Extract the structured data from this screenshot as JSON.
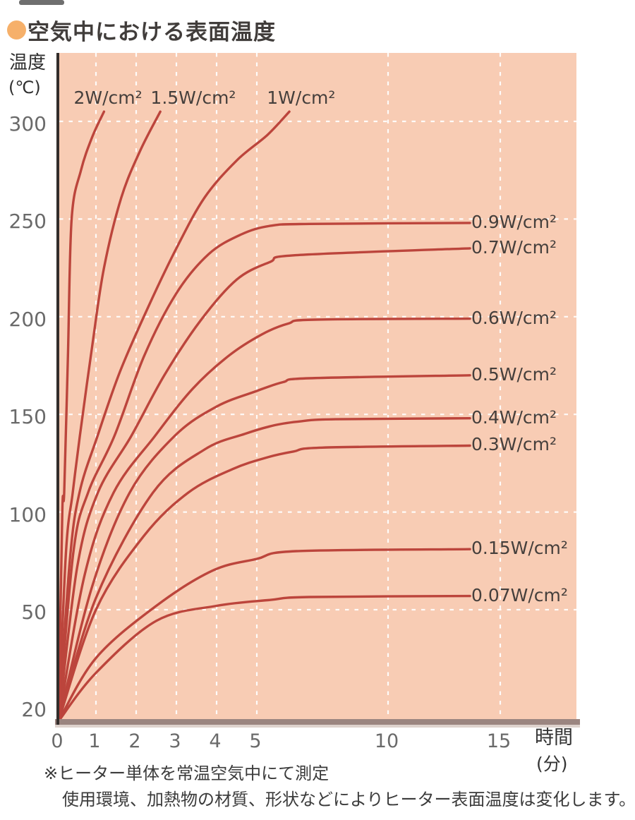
{
  "title": "空気中における表面温度",
  "y_axis": {
    "name_line1": "温度",
    "name_line2": "(℃)"
  },
  "x_axis": {
    "name_line1": "時間",
    "name_line2": "(分)"
  },
  "footnotes": [
    "※ヒーター単体を常温空気中にて測定",
    "使用環境、加熱物の材質、形状などによりヒーター表面温度は変化します。"
  ],
  "colors": {
    "plot_bg": "#f8ccb4",
    "curve": "#bc453c",
    "grid": "#ffffff",
    "bullet": "#f6b06a",
    "axis_line": "#332e2c",
    "baseline_bar": "#9b8580",
    "baseline_bar_shadow": "#cdbab2"
  },
  "chart_data": {
    "type": "line",
    "title": "空気中における表面温度",
    "xlabel": "時間(分)",
    "ylabel": "温度(℃)",
    "xlim": [
      0,
      15
    ],
    "ylim": [
      20,
      310
    ],
    "x_ticks": [
      0,
      1,
      2,
      3,
      4,
      5,
      10,
      15
    ],
    "y_ticks": [
      300,
      250,
      200,
      150,
      100,
      50,
      20
    ],
    "x_scale_note": "non-linear: 0-5 min expanded, 5-15 min compressed",
    "grid": "white dashed",
    "legend_position": "labels at curve ends",
    "series": [
      {
        "label": "2W/cm²",
        "side": "top",
        "label_t": 1.3,
        "label_T": 312,
        "points": [
          [
            0,
            20
          ],
          [
            0.1,
            100
          ],
          [
            0.15,
            110
          ],
          [
            0.25,
            180
          ],
          [
            0.35,
            250
          ],
          [
            0.6,
            275
          ],
          [
            0.9,
            292
          ],
          [
            1.2,
            305
          ]
        ]
      },
      {
        "label": "1.5W/cm²",
        "side": "top",
        "label_t": 3.42,
        "label_T": 312,
        "points": [
          [
            0,
            20
          ],
          [
            0.2,
            80
          ],
          [
            0.38,
            110
          ],
          [
            0.57,
            139
          ],
          [
            0.9,
            185
          ],
          [
            1.2,
            225
          ],
          [
            1.63,
            261
          ],
          [
            2.1,
            285
          ],
          [
            2.6,
            305
          ]
        ]
      },
      {
        "label": "1W/cm²",
        "side": "top",
        "label_t": 6.69,
        "label_T": 312,
        "points": [
          [
            0,
            20
          ],
          [
            0.3,
            75
          ],
          [
            0.56,
            110
          ],
          [
            1.04,
            139
          ],
          [
            1.6,
            172
          ],
          [
            2.3,
            205
          ],
          [
            3,
            235
          ],
          [
            3.7,
            261
          ],
          [
            4.5,
            280
          ],
          [
            5.4,
            293
          ],
          [
            6.24,
            305
          ]
        ]
      },
      {
        "label": "0.9W/cm²",
        "side": "right",
        "max_temp": 248,
        "points": [
          [
            0,
            20
          ],
          [
            0.4,
            80
          ],
          [
            0.79,
            110
          ],
          [
            1.46,
            139
          ],
          [
            2.2,
            180
          ],
          [
            3,
            212
          ],
          [
            3.8,
            232
          ],
          [
            4.6,
            242
          ],
          [
            5.5,
            246.5
          ],
          [
            7,
            247.5
          ],
          [
            13.65,
            248
          ]
        ]
      },
      {
        "label": "0.7W/cm²",
        "side": "right",
        "max_temp": 235,
        "points": [
          [
            0,
            20
          ],
          [
            0.5,
            72
          ],
          [
            1.05,
            110
          ],
          [
            1.88,
            139
          ],
          [
            2.7,
            170
          ],
          [
            3.6,
            198
          ],
          [
            4.5,
            219
          ],
          [
            5.5,
            228
          ],
          [
            6.5,
            231.5
          ],
          [
            13.65,
            235
          ]
        ]
      },
      {
        "label": "0.6W/cm²",
        "side": "right",
        "max_temp": 199,
        "points": [
          [
            0,
            20
          ],
          [
            0.7,
            68
          ],
          [
            1.44,
            110
          ],
          [
            2.47,
            139
          ],
          [
            3.4,
            163
          ],
          [
            4.3,
            180
          ],
          [
            5.2,
            191
          ],
          [
            6.2,
            196.5
          ],
          [
            7.2,
            198.5
          ],
          [
            13.65,
            199
          ]
        ]
      },
      {
        "label": "0.5W/cm²",
        "side": "right",
        "max_temp": 170,
        "points": [
          [
            0,
            20
          ],
          [
            0.9,
            62
          ],
          [
            1.84,
            110
          ],
          [
            2.96,
            139
          ],
          [
            4,
            154
          ],
          [
            5,
            162
          ],
          [
            6,
            166.5
          ],
          [
            7,
            168.5
          ],
          [
            13.65,
            170
          ]
        ]
      },
      {
        "label": "0.4W/cm²",
        "side": "right",
        "max_temp": 148,
        "points": [
          [
            0,
            20
          ],
          [
            1,
            56
          ],
          [
            2.42,
            110
          ],
          [
            3.7,
            132
          ],
          [
            4.7,
            140
          ],
          [
            5.7,
            144.5
          ],
          [
            6.7,
            146.5
          ],
          [
            8,
            147.5
          ],
          [
            13.65,
            148
          ]
        ]
      },
      {
        "label": "0.3W/cm²",
        "side": "right",
        "max_temp": 134,
        "points": [
          [
            0,
            20
          ],
          [
            1,
            50
          ],
          [
            2.2,
            88
          ],
          [
            3.3,
            110
          ],
          [
            4.4,
            122
          ],
          [
            5.4,
            128
          ],
          [
            6.4,
            131
          ],
          [
            7.5,
            133
          ],
          [
            13.65,
            134
          ]
        ]
      },
      {
        "label": "0.15W/cm²",
        "side": "right",
        "max_temp": 81,
        "points": [
          [
            0,
            20
          ],
          [
            1,
            37
          ],
          [
            2.5,
            52
          ],
          [
            3.9,
            70
          ],
          [
            5,
            76
          ],
          [
            6.5,
            80
          ],
          [
            13.65,
            81
          ]
        ]
      },
      {
        "label": "0.07W/cm²",
        "side": "right",
        "max_temp": 57,
        "points": [
          [
            0,
            20
          ],
          [
            1,
            33
          ],
          [
            2.5,
            47
          ],
          [
            4,
            52
          ],
          [
            5.5,
            55
          ],
          [
            7,
            56.5
          ],
          [
            13.65,
            57
          ]
        ]
      }
    ]
  }
}
